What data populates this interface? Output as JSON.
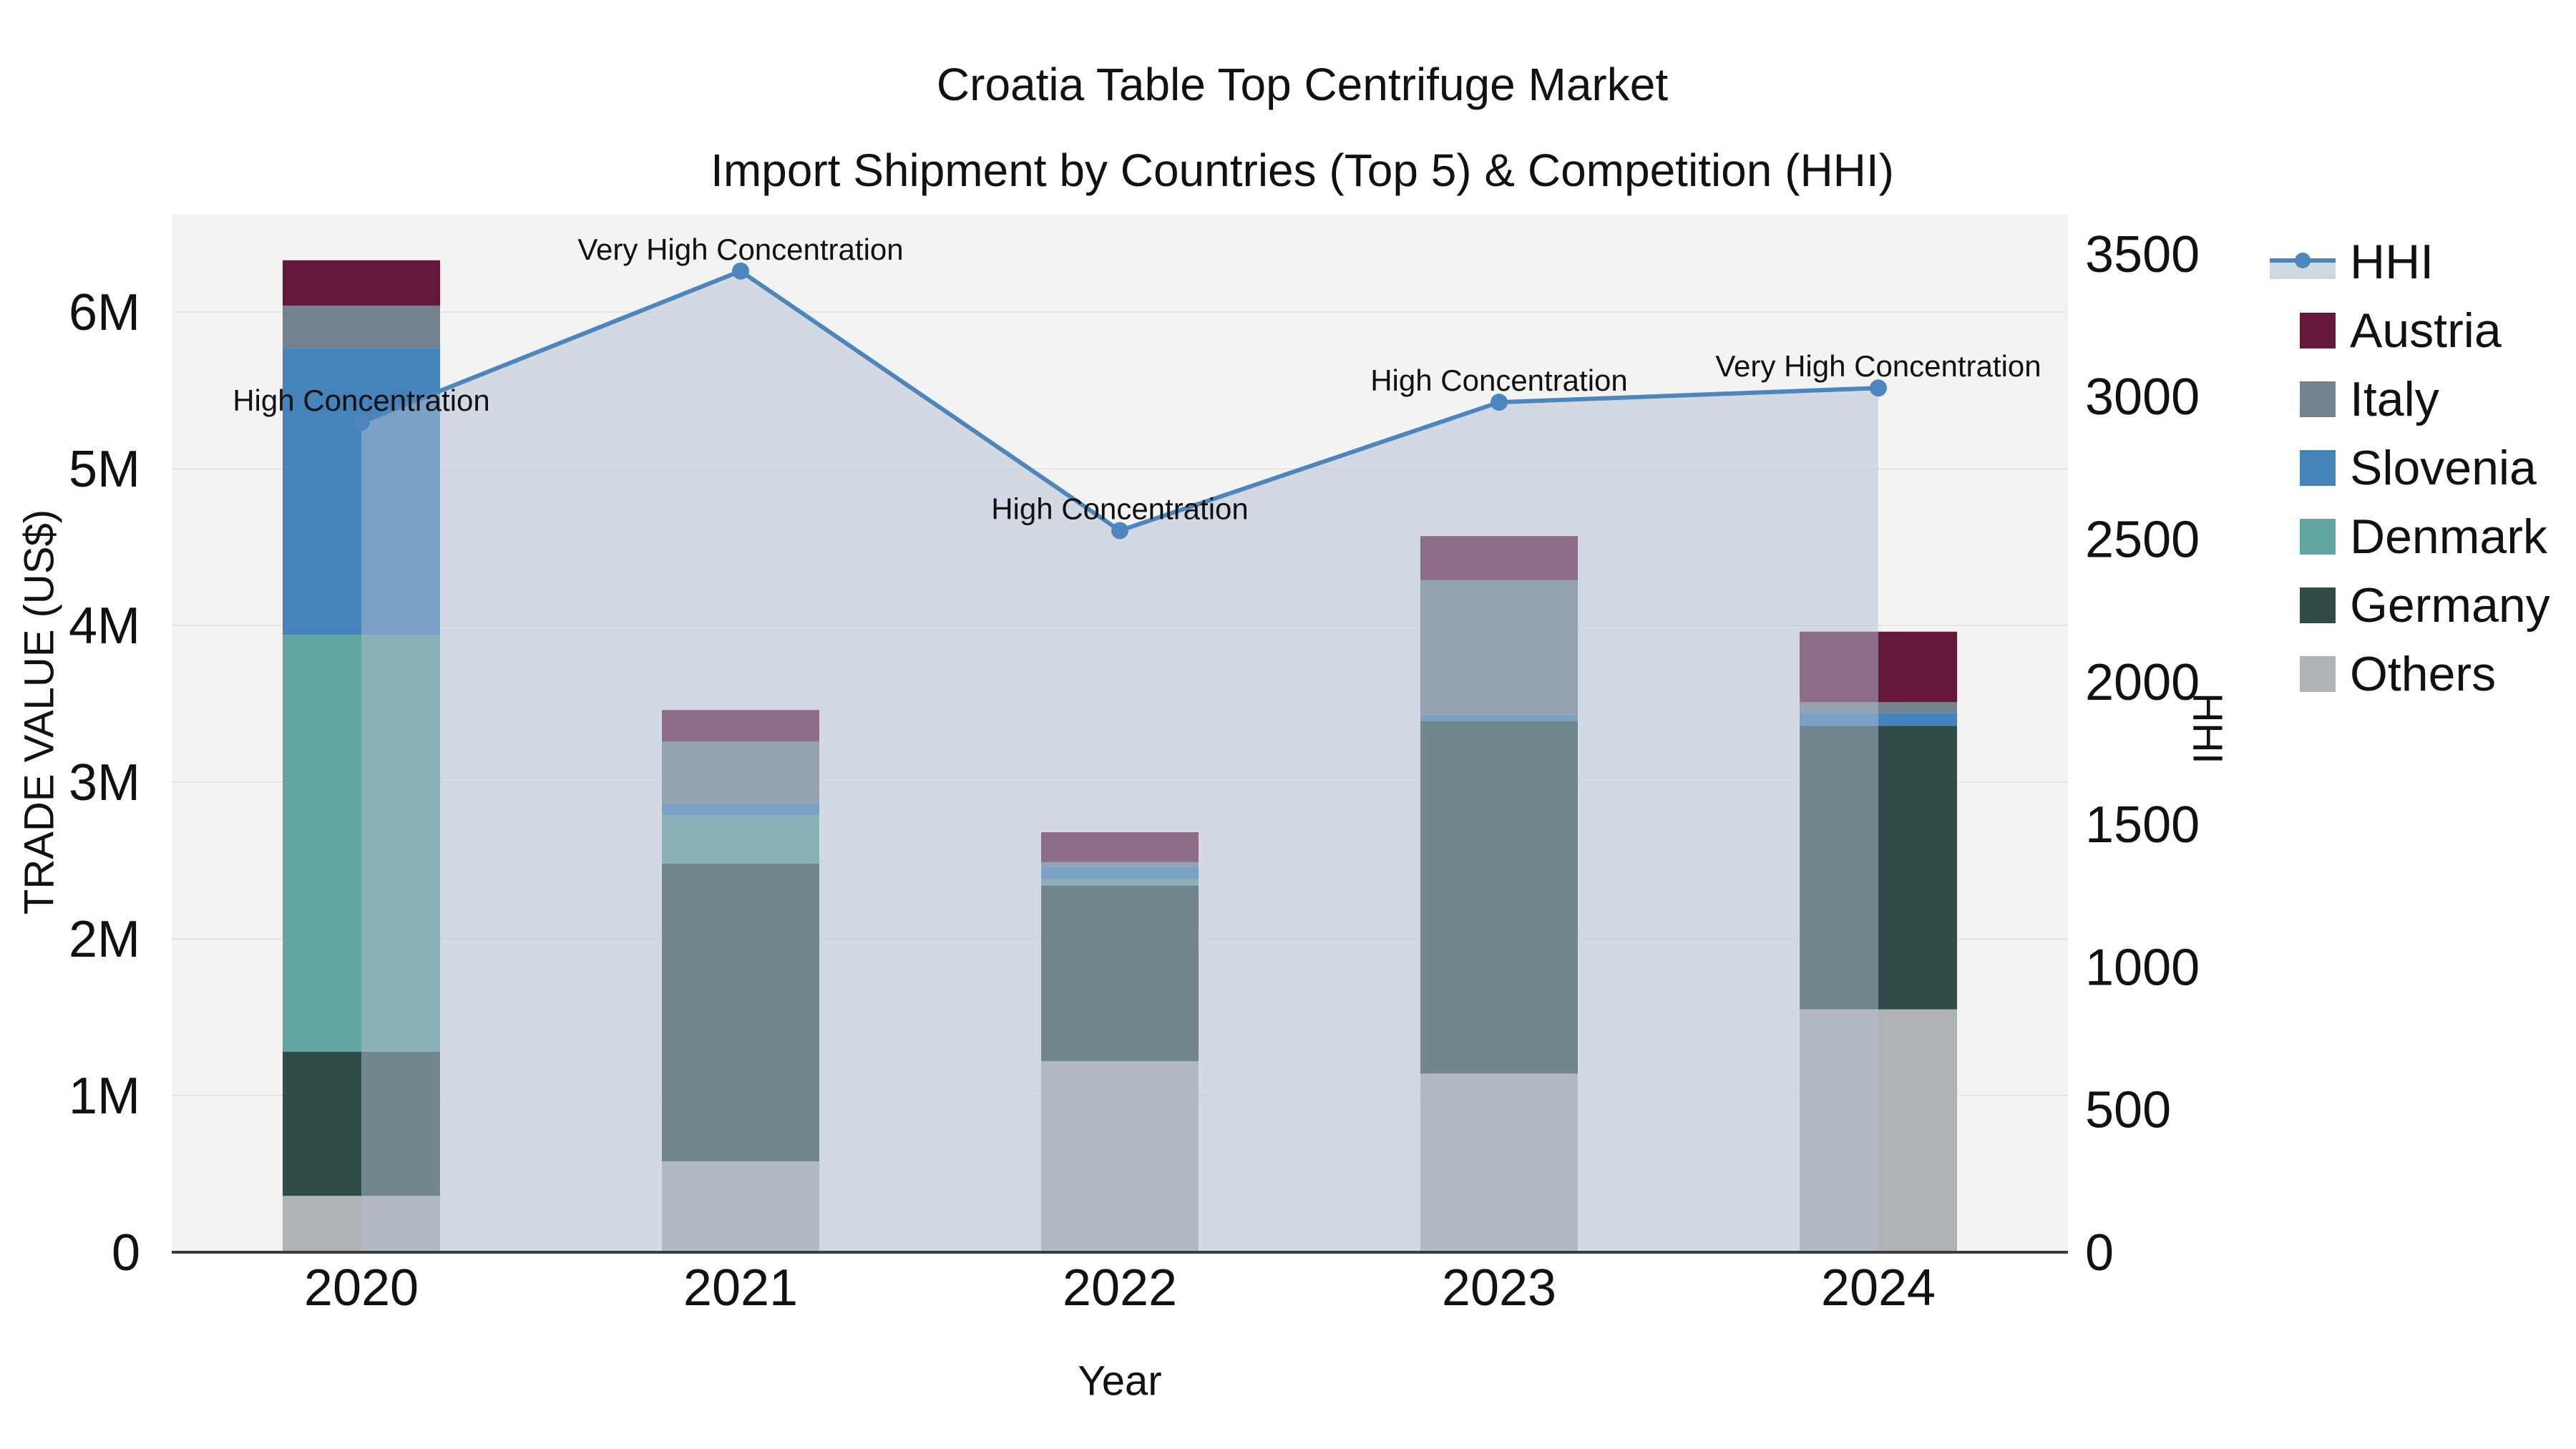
{
  "title": {
    "line1": "Croatia Table Top Centrifuge Market",
    "line2": "Import Shipment by Countries (Top 5) & Competition (HHI)"
  },
  "axes": {
    "x": {
      "label": "Year"
    },
    "y_left": {
      "label": "TRADE VALUE (US$)",
      "ticks": [
        {
          "value": 0,
          "label": "0"
        },
        {
          "value": 1,
          "label": "1M"
        },
        {
          "value": 2,
          "label": "2M"
        },
        {
          "value": 3,
          "label": "3M"
        },
        {
          "value": 4,
          "label": "4M"
        },
        {
          "value": 5,
          "label": "5M"
        },
        {
          "value": 6,
          "label": "6M"
        }
      ]
    },
    "y_right": {
      "label": "HHI",
      "ticks": [
        {
          "value": 0,
          "label": "0"
        },
        {
          "value": 500,
          "label": "500"
        },
        {
          "value": 1000,
          "label": "1000"
        },
        {
          "value": 1500,
          "label": "1500"
        },
        {
          "value": 2000,
          "label": "2000"
        },
        {
          "value": 2500,
          "label": "2500"
        },
        {
          "value": 3000,
          "label": "3000"
        },
        {
          "value": 3500,
          "label": "3500"
        }
      ]
    }
  },
  "chart_data": {
    "type": "stacked-bar + line",
    "categories": [
      "2020",
      "2021",
      "2022",
      "2023",
      "2024"
    ],
    "bar_values_unit": "millions US$",
    "bar_series_stack_order_bottom_to_top": [
      {
        "name": "Others",
        "color": "#B0B3B5",
        "values": [
          0.36,
          0.58,
          1.22,
          1.14,
          1.55
        ]
      },
      {
        "name": "Germany",
        "color": "#2F4C48",
        "values": [
          0.92,
          1.9,
          1.12,
          2.25,
          1.81
        ]
      },
      {
        "name": "Denmark",
        "color": "#63A5A1",
        "values": [
          2.66,
          0.31,
          0.04,
          0.0,
          0.0
        ]
      },
      {
        "name": "Slovenia",
        "color": "#4583BB",
        "values": [
          1.83,
          0.07,
          0.08,
          0.04,
          0.08
        ]
      },
      {
        "name": "Italy",
        "color": "#74828F",
        "values": [
          0.27,
          0.4,
          0.03,
          0.86,
          0.07
        ]
      },
      {
        "name": "Austria",
        "color": "#65183A",
        "values": [
          0.29,
          0.2,
          0.19,
          0.28,
          0.45
        ]
      }
    ],
    "line_series": {
      "name": "HHI",
      "color": "#4C86BD",
      "area_fill_color": "rgba(180,192,210,0.5)",
      "values": [
        2910,
        3440,
        2530,
        2980,
        3030
      ]
    },
    "annotations": [
      {
        "category": "2020",
        "text": "High Concentration"
      },
      {
        "category": "2021",
        "text": "Very High Concentration"
      },
      {
        "category": "2022",
        "text": "High Concentration"
      },
      {
        "category": "2023",
        "text": "High Concentration"
      },
      {
        "category": "2024",
        "text": "Very High Concentration"
      }
    ],
    "legend_order": [
      "HHI",
      "Austria",
      "Italy",
      "Slovenia",
      "Denmark",
      "Germany",
      "Others"
    ],
    "plot_background_color": "#F3F3F2",
    "gridline_color": "#E4E6E6",
    "axis_line_color": "#3B3B3B",
    "grid_on": true,
    "legend_position": "right",
    "y_left_range_m": [
      0,
      6.62
    ],
    "y_right_range": [
      0,
      3640
    ]
  }
}
